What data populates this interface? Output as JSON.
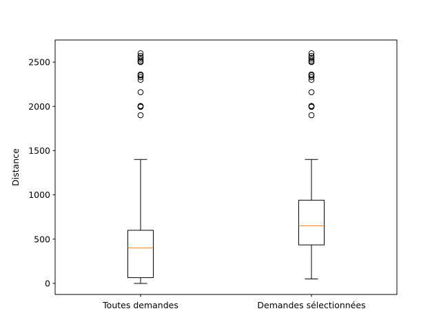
{
  "chart_data": {
    "type": "box",
    "title": "",
    "xlabel": "",
    "ylabel": "Distance",
    "ylim": [
      -125,
      2750
    ],
    "yticks": [
      0,
      500,
      1000,
      1500,
      2000,
      2500
    ],
    "grid": false,
    "categories": [
      "Toutes demandes",
      "Demandes sélectionnées"
    ],
    "boxes": [
      {
        "name": "Toutes demandes",
        "whisker_low": 0,
        "q1": 65,
        "median": 400,
        "q3": 600,
        "whisker_high": 1400,
        "outliers": [
          1900,
          1995,
          2000,
          2005,
          2160,
          2300,
          2330,
          2350,
          2360,
          2500,
          2510,
          2530,
          2550,
          2570,
          2600
        ]
      },
      {
        "name": "Demandes sélectionnées",
        "whisker_low": 50,
        "q1": 435,
        "median": 650,
        "q3": 940,
        "whisker_high": 1400,
        "outliers": [
          1900,
          1995,
          2000,
          2005,
          2160,
          2300,
          2330,
          2350,
          2360,
          2500,
          2510,
          2530,
          2550,
          2570,
          2600
        ]
      }
    ],
    "colors": {
      "median": "#ff7f0e",
      "box": "#000000"
    }
  }
}
